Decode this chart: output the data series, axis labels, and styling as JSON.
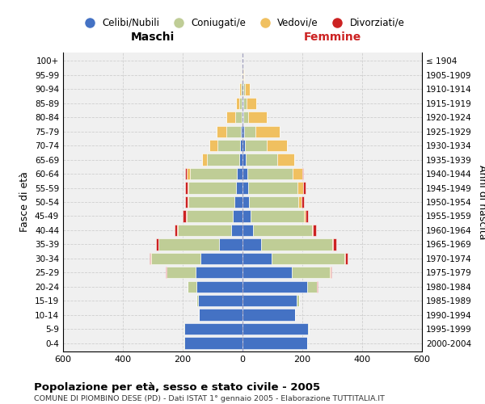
{
  "age_groups": [
    "0-4",
    "5-9",
    "10-14",
    "15-19",
    "20-24",
    "25-29",
    "30-34",
    "35-39",
    "40-44",
    "45-49",
    "50-54",
    "55-59",
    "60-64",
    "65-69",
    "70-74",
    "75-79",
    "80-84",
    "85-89",
    "90-94",
    "95-99",
    "100+"
  ],
  "birth_years": [
    "2000-2004",
    "1995-1999",
    "1990-1994",
    "1985-1989",
    "1980-1984",
    "1975-1979",
    "1970-1974",
    "1965-1969",
    "1960-1964",
    "1955-1959",
    "1950-1954",
    "1945-1949",
    "1940-1944",
    "1935-1939",
    "1930-1934",
    "1925-1929",
    "1920-1924",
    "1915-1919",
    "1910-1914",
    "1905-1909",
    "≤ 1904"
  ],
  "males_celibi": [
    195,
    195,
    145,
    148,
    155,
    158,
    140,
    78,
    38,
    32,
    28,
    22,
    18,
    10,
    8,
    5,
    3,
    2,
    1,
    0,
    0
  ],
  "males_coniugati": [
    2,
    2,
    2,
    5,
    28,
    95,
    165,
    202,
    178,
    155,
    152,
    158,
    158,
    108,
    75,
    50,
    22,
    8,
    4,
    1,
    0
  ],
  "males_vedovi": [
    0,
    0,
    0,
    0,
    1,
    2,
    2,
    2,
    2,
    3,
    5,
    5,
    10,
    18,
    28,
    32,
    28,
    12,
    5,
    1,
    0
  ],
  "males_divorziati": [
    0,
    0,
    0,
    0,
    1,
    3,
    5,
    8,
    10,
    10,
    8,
    8,
    5,
    0,
    0,
    0,
    0,
    0,
    0,
    0,
    0
  ],
  "females_nubili": [
    215,
    220,
    175,
    180,
    215,
    165,
    98,
    62,
    35,
    28,
    22,
    18,
    15,
    10,
    8,
    5,
    4,
    3,
    2,
    1,
    0
  ],
  "females_coniugate": [
    2,
    2,
    2,
    8,
    33,
    128,
    242,
    238,
    198,
    178,
    165,
    165,
    152,
    105,
    72,
    38,
    15,
    10,
    5,
    1,
    0
  ],
  "females_vedove": [
    0,
    0,
    0,
    0,
    1,
    1,
    2,
    2,
    3,
    5,
    10,
    20,
    32,
    58,
    68,
    82,
    62,
    32,
    18,
    4,
    1
  ],
  "females_divorziate": [
    0,
    0,
    0,
    0,
    1,
    3,
    8,
    12,
    10,
    8,
    8,
    8,
    5,
    0,
    0,
    0,
    0,
    0,
    0,
    0,
    0
  ],
  "color_celibi": "#4472C4",
  "color_coniugati": "#BFCD96",
  "color_vedovi": "#F0C060",
  "color_divorziati": "#CC2222",
  "title": "Popolazione per età, sesso e stato civile - 2005",
  "subtitle": "COMUNE DI PIOMBINO DESE (PD) - Dati ISTAT 1° gennaio 2005 - Elaborazione TUTTITALIA.IT",
  "ylabel_left": "Fasce di età",
  "ylabel_right": "Anni di nascita",
  "label_maschi": "Maschi",
  "label_femmine": "Femmine",
  "legend_labels": [
    "Celibi/Nubili",
    "Coniugati/e",
    "Vedovi/e",
    "Divorziati/e"
  ],
  "xlim": 600,
  "bg_color": "#ffffff",
  "plot_bg_color": "#f0f0f0",
  "grid_color": "#cccccc"
}
